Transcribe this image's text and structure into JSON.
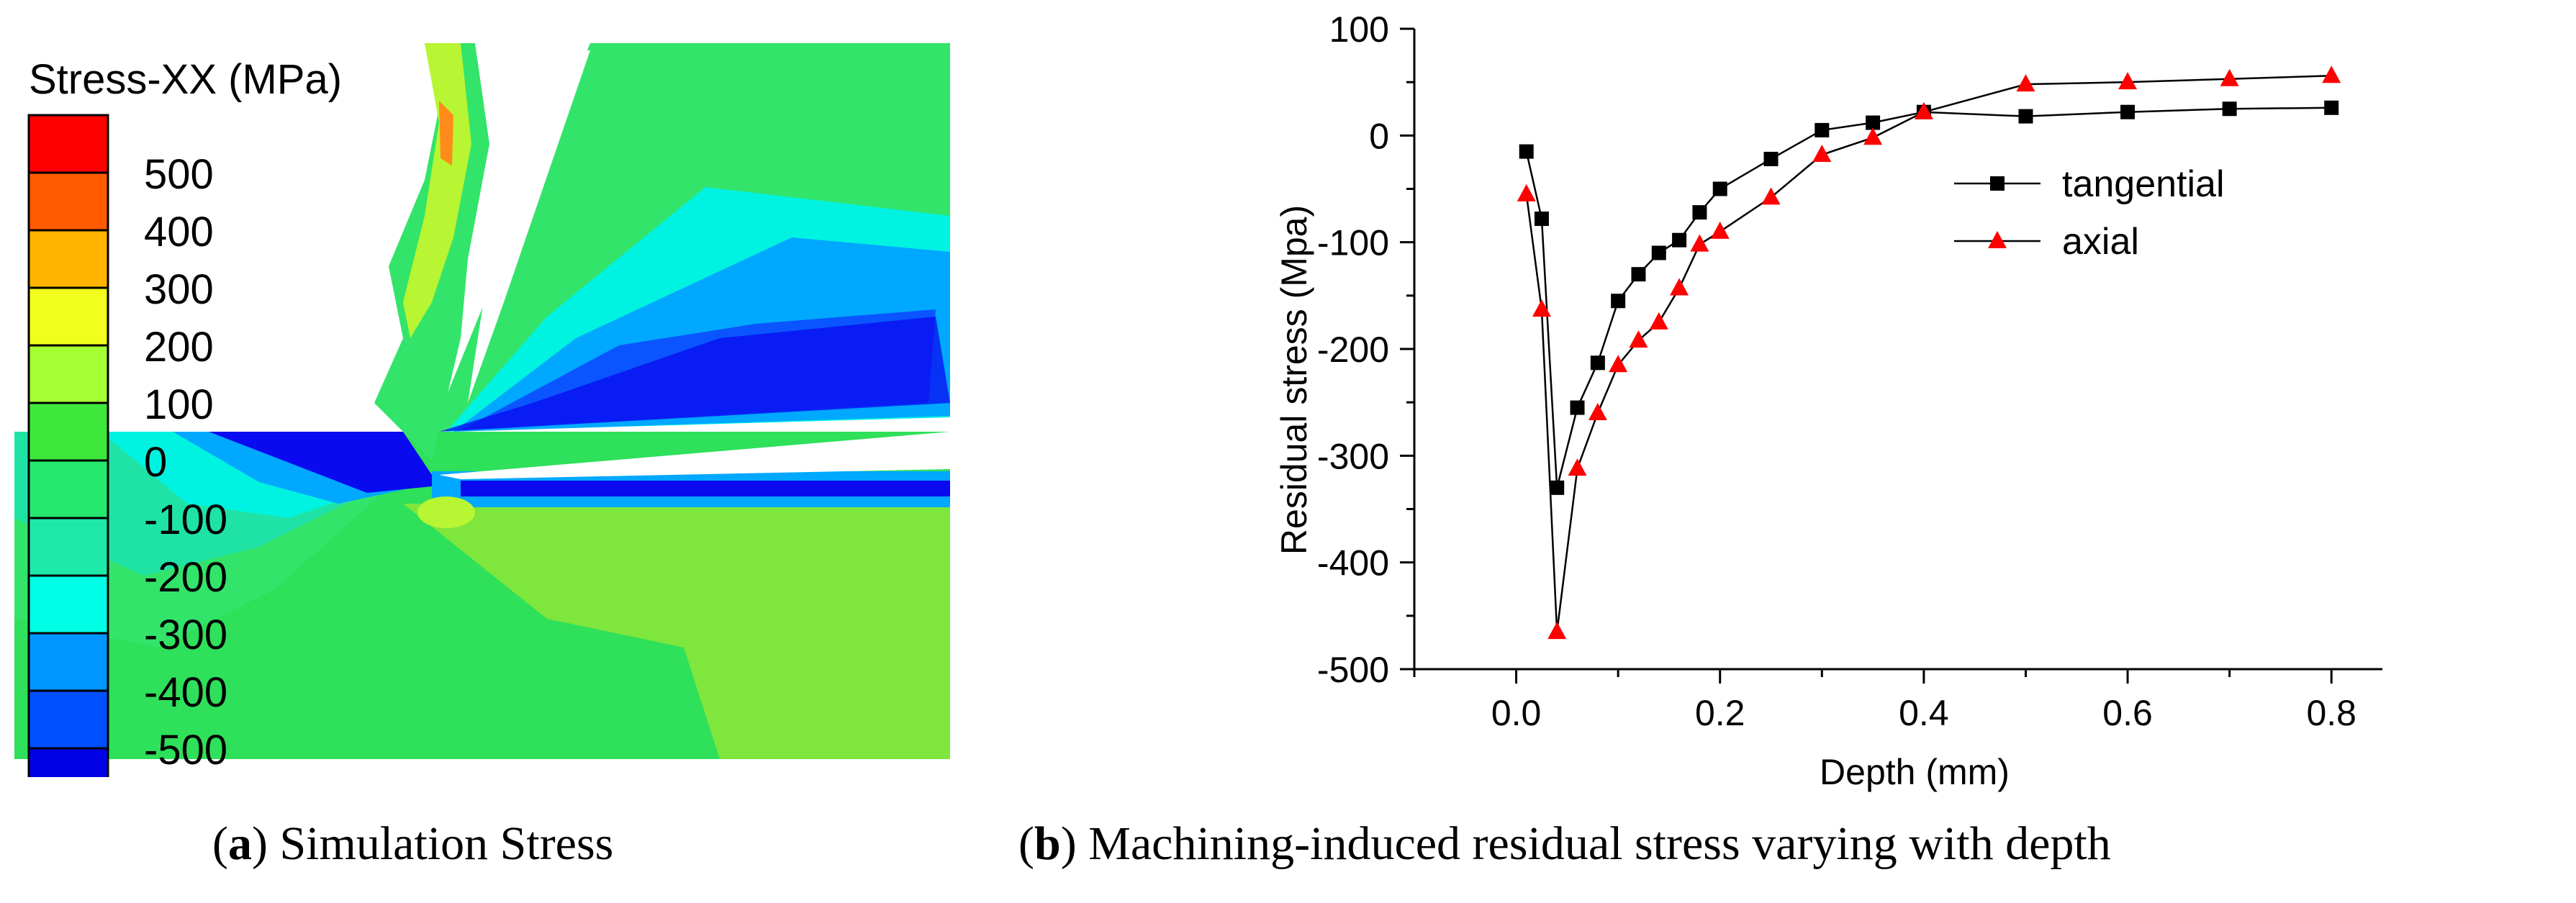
{
  "chart_data": [
    {
      "type": "heatmap",
      "title": "Simulation Stress",
      "panel_label": "a",
      "colorbar": {
        "title": "Stress-XX (MPa)",
        "ticks": [
          "500",
          "400",
          "300",
          "200",
          "100",
          "0",
          "-100",
          "-200",
          "-300",
          "-400",
          "-500"
        ],
        "colors": [
          "#ff0000",
          "#ff5a00",
          "#ffb400",
          "#f2ff1e",
          "#a6ff33",
          "#3ee83a",
          "#25e86e",
          "#1ee8a8",
          "#00ffe6",
          "#0096ff",
          "#0050ff",
          "#0000e6"
        ]
      },
      "palette": {
        "background": "#2ee05a",
        "band_green": "#33e46a",
        "band_teal": "#1fe3a5",
        "band_cyan": "#00f3e0",
        "band_lightblue": "#00a8ff",
        "band_blue": "#0a55ff",
        "band_deep": "#0a0af0",
        "chip_yellow": "#b8f533",
        "chip_hot": "#ff8c1a"
      }
    },
    {
      "type": "line",
      "panel_label": "b",
      "title": "Machining-induced residual stress varying with depth",
      "xlabel": "Depth (mm)",
      "ylabel": "Residual stress (Mpa)",
      "xlim": [
        -0.1,
        0.85
      ],
      "ylim": [
        -500,
        100
      ],
      "xticks": [
        0.0,
        0.2,
        0.4,
        0.6,
        0.8
      ],
      "xtick_labels": [
        "0.0",
        "0.2",
        "0.4",
        "0.6",
        "0.8"
      ],
      "yticks": [
        100,
        0,
        -100,
        -200,
        -300,
        -400,
        -500
      ],
      "ytick_labels": [
        "100",
        "0",
        "-100",
        "-200",
        "-300",
        "-400",
        "-500"
      ],
      "legend_position": "upper-right",
      "series": [
        {
          "name": "tangential",
          "marker": "square",
          "color": "#000000",
          "x": [
            0.01,
            0.025,
            0.04,
            0.06,
            0.08,
            0.1,
            0.12,
            0.14,
            0.16,
            0.18,
            0.2,
            0.25,
            0.3,
            0.35,
            0.4,
            0.5,
            0.6,
            0.7,
            0.8
          ],
          "values": [
            -15,
            -78,
            -330,
            -255,
            -213,
            -155,
            -130,
            -110,
            -98,
            -72,
            -50,
            -22,
            5,
            12,
            22,
            18,
            22,
            25,
            26
          ]
        },
        {
          "name": "axial",
          "marker": "triangle",
          "color": "#ff0000",
          "x": [
            0.01,
            0.025,
            0.04,
            0.06,
            0.08,
            0.1,
            0.12,
            0.14,
            0.16,
            0.18,
            0.2,
            0.25,
            0.3,
            0.35,
            0.4,
            0.5,
            0.6,
            0.7,
            0.8
          ],
          "values": [
            -55,
            -163,
            -465,
            -312,
            -260,
            -215,
            -192,
            -175,
            -143,
            -102,
            -90,
            -58,
            -18,
            -2,
            22,
            48,
            50,
            53,
            56
          ]
        }
      ]
    }
  ],
  "captions": {
    "a_label": "a",
    "a_text": " Simulation Stress",
    "b_label": "b",
    "b_text": " Machining-induced residual stress varying with depth"
  }
}
